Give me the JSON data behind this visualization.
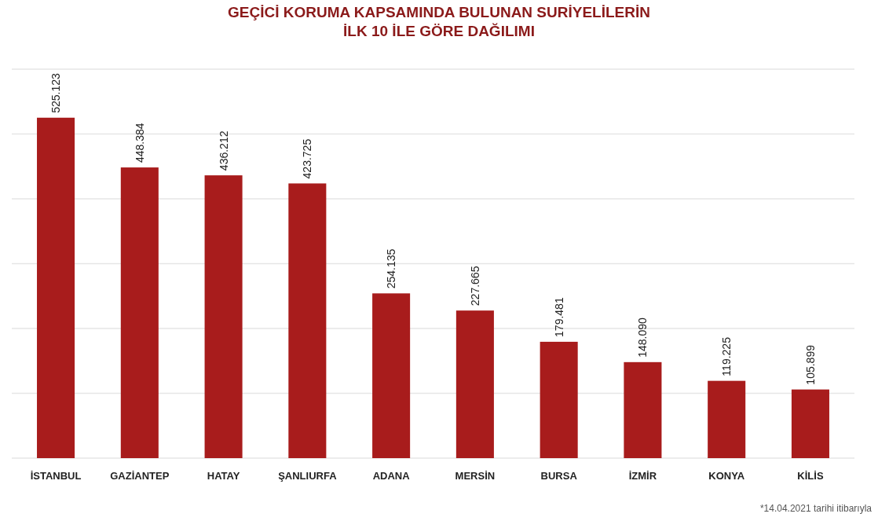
{
  "chart_data": {
    "type": "bar",
    "title": "GEÇİCİ KORUMA KAPSAMINDA BULUNAN SURİYELİLERİN\nİLK 10 İLE GÖRE DAĞILIMI",
    "categories": [
      "İSTANBUL",
      "GAZİANTEP",
      "HATAY",
      "ŞANLIURFA",
      "ADANA",
      "MERSİN",
      "BURSA",
      "İZMİR",
      "KONYA",
      "KİLİS"
    ],
    "values": [
      525123,
      448384,
      436212,
      423725,
      254135,
      227665,
      179481,
      148090,
      119225,
      105899
    ],
    "value_labels": [
      "525.123",
      "448.384",
      "436.212",
      "423.725",
      "254.135",
      "227.665",
      "179.481",
      "148.090",
      "119.225",
      "105.899"
    ],
    "color": "#a81c1c",
    "ylim": [
      0,
      600000
    ],
    "yticks": [
      {
        "value": 0,
        "label": null
      },
      {
        "value": 100000,
        "label": null
      },
      {
        "value": 200000,
        "label": null
      },
      {
        "value": 300000,
        "label": null
      },
      {
        "value": 400000,
        "label": null
      },
      {
        "value": 500000,
        "label": null
      },
      {
        "value": 600000,
        "label": null
      }
    ],
    "grid": "y",
    "annotations": [
      "*14.04.2021 tarihi itibarıyla"
    ]
  }
}
